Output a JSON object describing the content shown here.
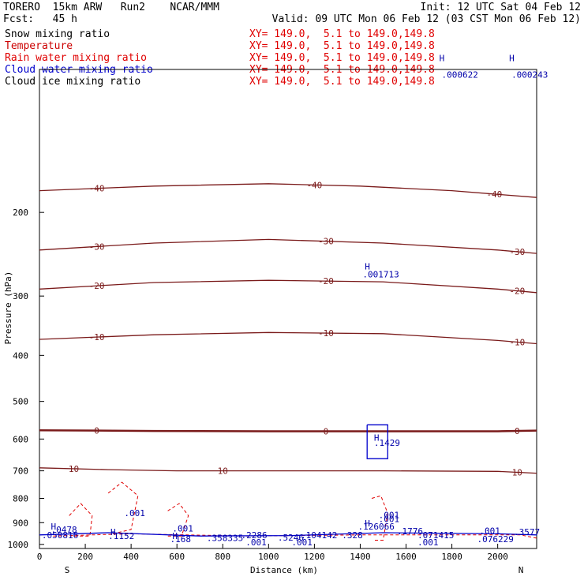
{
  "header": {
    "left1": "TORERO  15km ARW   Run2    NCAR/MMM",
    "right1": "Init: 12 UTC Sat 04 Feb 12",
    "left2": "Fcst:   45 h",
    "right2": "Valid: 09 UTC Mon 06 Feb 12 (03 CST Mon 06 Feb 12)"
  },
  "legend": [
    {
      "name": "Snow mixing ratio",
      "xy": "XY= 149.0,  5.1 to 149.0,149.8",
      "color": "#000000"
    },
    {
      "name": "Temperature",
      "xy": "XY= 149.0,  5.1 to 149.0,149.8",
      "color": "#cc0000"
    },
    {
      "name": "Rain water mixing ratio",
      "xy": "XY= 149.0,  5.1 to 149.0,149.8",
      "color": "#e00000"
    },
    {
      "name": "Cloud water mixing ratio",
      "xy": "XY= 149.0,  5.1 to 149.0,149.8",
      "color": "#0000cc"
    },
    {
      "name": "Cloud ice mixing ratio",
      "xy": "XY= 149.0,  5.1 to 149.0,149.8",
      "color": "#000000"
    }
  ],
  "chart_data": {
    "type": "contour",
    "xlabel": "Distance (km)",
    "ylabel": "Pressure (hPa)",
    "xlim": [
      0,
      2170
    ],
    "ylim": [
      1020,
      100
    ],
    "y_scale": "log",
    "x_ticks": [
      0,
      200,
      400,
      600,
      800,
      1000,
      1200,
      1400,
      1600,
      1800,
      2000
    ],
    "y_ticks": [
      200,
      300,
      400,
      500,
      600,
      700,
      800,
      900,
      1000
    ],
    "x_end_labels": {
      "left": "S",
      "right": "N"
    },
    "temperature_isotherms": [
      {
        "level": -40,
        "points": [
          [
            0,
            180
          ],
          [
            500,
            176
          ],
          [
            1000,
            174
          ],
          [
            1400,
            176
          ],
          [
            1800,
            180
          ],
          [
            2170,
            186
          ]
        ]
      },
      {
        "level": -30,
        "points": [
          [
            0,
            240
          ],
          [
            500,
            232
          ],
          [
            1000,
            228
          ],
          [
            1500,
            232
          ],
          [
            2000,
            240
          ],
          [
            2170,
            244
          ]
        ]
      },
      {
        "level": -20,
        "points": [
          [
            0,
            290
          ],
          [
            500,
            281
          ],
          [
            1000,
            278
          ],
          [
            1500,
            280
          ],
          [
            2000,
            290
          ],
          [
            2170,
            295
          ]
        ]
      },
      {
        "level": -10,
        "points": [
          [
            0,
            370
          ],
          [
            500,
            362
          ],
          [
            1000,
            358
          ],
          [
            1500,
            360
          ],
          [
            2000,
            372
          ],
          [
            2170,
            378
          ]
        ]
      },
      {
        "level": 0,
        "points": [
          [
            0,
            575
          ],
          [
            500,
            577
          ],
          [
            1000,
            578
          ],
          [
            1500,
            578
          ],
          [
            2000,
            578
          ],
          [
            2170,
            576
          ]
        ]
      },
      {
        "level": 10,
        "points": [
          [
            0,
            690
          ],
          [
            300,
            696
          ],
          [
            600,
            700
          ],
          [
            1000,
            700
          ],
          [
            1500,
            700
          ],
          [
            2000,
            702
          ],
          [
            2170,
            708
          ]
        ]
      }
    ],
    "annotations": [
      {
        "text": "H",
        "x": 1420,
        "y": 264
      },
      {
        "text": ".001713",
        "x": 1410,
        "y": 274
      },
      {
        "text": "H",
        "x": 1745,
        "y": 96
      },
      {
        "text": ".000622",
        "x": 1755,
        "y": 104
      },
      {
        "text": "H",
        "x": 2050,
        "y": 96
      },
      {
        "text": ".000243",
        "x": 2060,
        "y": 104
      },
      {
        "text": "H",
        "x": 1460,
        "y": 605
      },
      {
        "text": ".1429",
        "x": 1460,
        "y": 620
      },
      {
        "text": "H",
        "x": 50,
        "y": 930
      },
      {
        "text": ".0478",
        "x": 50,
        "y": 945
      },
      {
        "text": "H",
        "x": 310,
        "y": 955
      },
      {
        "text": ".1152",
        "x": 300,
        "y": 975
      },
      {
        "text": "H",
        "x": 580,
        "y": 975
      },
      {
        "text": ".168",
        "x": 570,
        "y": 990
      },
      {
        "text": ".2286",
        "x": 880,
        "y": 970
      },
      {
        "text": ".5246",
        "x": 1040,
        "y": 982
      },
      {
        "text": ".328",
        "x": 1320,
        "y": 970
      },
      {
        "text": ".1776",
        "x": 1560,
        "y": 953
      },
      {
        "text": ".3577",
        "x": 2070,
        "y": 955
      },
      {
        "text": ".001",
        "x": 370,
        "y": 872
      },
      {
        "text": ".001",
        "x": 1480,
        "y": 880
      },
      {
        "text": ".001",
        "x": 1480,
        "y": 898
      },
      {
        "text": "H",
        "x": 1420,
        "y": 917
      },
      {
        "text": ".126066",
        "x": 1390,
        "y": 930
      },
      {
        "text": ".050816",
        "x": 10,
        "y": 970
      },
      {
        "text": ".358335",
        "x": 730,
        "y": 983
      },
      {
        "text": ".104142",
        "x": 1140,
        "y": 970
      },
      {
        "text": ".071415",
        "x": 1650,
        "y": 970
      },
      {
        "text": ".076229",
        "x": 1910,
        "y": 990
      },
      {
        "text": ".001",
        "x": 900,
        "y": 1005
      },
      {
        "text": ".001",
        "x": 1100,
        "y": 1005
      },
      {
        "text": ".001",
        "x": 1650,
        "y": 1005
      },
      {
        "text": ".001",
        "x": 1920,
        "y": 950
      },
      {
        "text": ".001",
        "x": 580,
        "y": 940
      }
    ]
  }
}
